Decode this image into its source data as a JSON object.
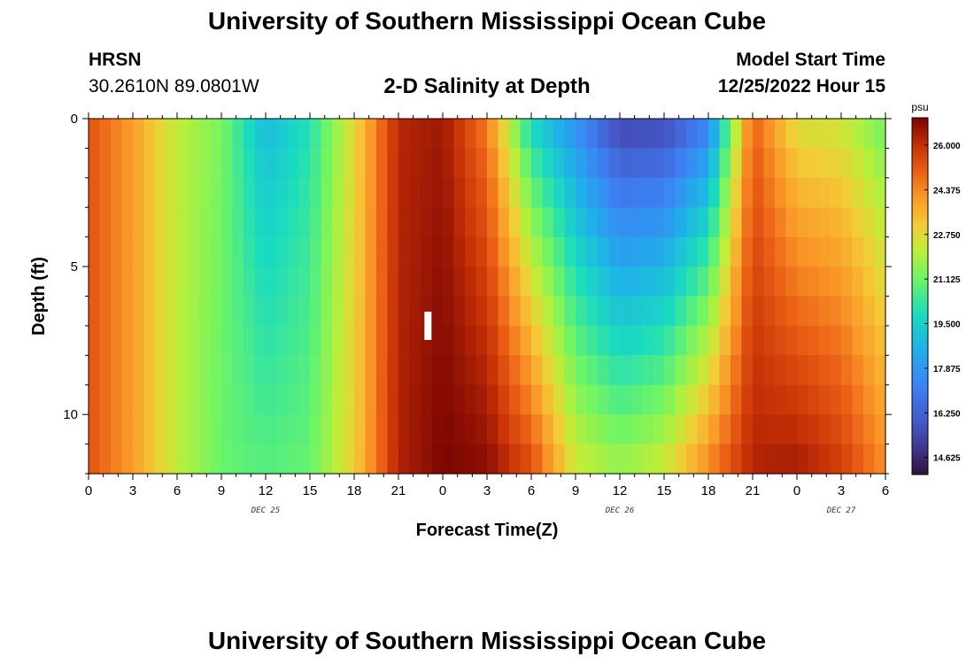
{
  "header": {
    "title": "University of Southern Mississippi Ocean Cube",
    "station": "HRSN",
    "coords": "30.2610N  89.0801W",
    "subtitle": "2-D Salinity at Depth",
    "model_start_label": "Model Start Time",
    "model_start_value": "12/25/2022 Hour 15"
  },
  "footer": {
    "title": "University of Southern Mississippi Ocean Cube"
  },
  "chart_data": {
    "type": "heatmap",
    "variable": "Salinity",
    "units": "psu",
    "xlabel": "Forecast Time(Z)",
    "ylabel": "Depth (ft)",
    "x_range_hours": [
      0,
      54
    ],
    "y_range": [
      0,
      12
    ],
    "x_ticks": [
      {
        "hour": 0,
        "label": "0"
      },
      {
        "hour": 3,
        "label": "3"
      },
      {
        "hour": 6,
        "label": "6"
      },
      {
        "hour": 9,
        "label": "9"
      },
      {
        "hour": 12,
        "label": "12"
      },
      {
        "hour": 15,
        "label": "15"
      },
      {
        "hour": 18,
        "label": "18"
      },
      {
        "hour": 21,
        "label": "21"
      },
      {
        "hour": 24,
        "label": "0"
      },
      {
        "hour": 27,
        "label": "3"
      },
      {
        "hour": 30,
        "label": "6"
      },
      {
        "hour": 33,
        "label": "9"
      },
      {
        "hour": 36,
        "label": "12"
      },
      {
        "hour": 39,
        "label": "15"
      },
      {
        "hour": 42,
        "label": "18"
      },
      {
        "hour": 45,
        "label": "21"
      },
      {
        "hour": 48,
        "label": "0"
      },
      {
        "hour": 51,
        "label": "3"
      },
      {
        "hour": 54,
        "label": "6"
      }
    ],
    "date_labels": [
      {
        "hour": 12,
        "label": "DEC 25"
      },
      {
        "hour": 36,
        "label": "DEC 26"
      },
      {
        "hour": 51,
        "label": "DEC 27"
      }
    ],
    "y_ticks": [
      {
        "value": 0,
        "label": "0"
      },
      {
        "value": 5,
        "label": "5"
      },
      {
        "value": 10,
        "label": "10"
      }
    ],
    "colorbar": {
      "min": 14.0,
      "max": 27.0,
      "ticks": [
        14.625,
        16.25,
        17.875,
        19.5,
        21.125,
        22.75,
        24.375,
        26.0
      ],
      "tick_labels": [
        "14.625",
        "16.250",
        "17.875",
        "19.500",
        "21.125",
        "22.750",
        "24.375",
        "26.000"
      ]
    },
    "current_time_marker_hour": 23.0,
    "depths": [
      0,
      1,
      2,
      3,
      4,
      5,
      6,
      7,
      8,
      9,
      10,
      11,
      12
    ],
    "profile": {
      "hours": [
        0,
        3,
        6,
        9,
        12,
        15,
        18,
        21,
        24,
        27,
        30,
        33,
        36,
        39,
        42,
        45,
        48,
        51,
        54
      ],
      "surface": [
        25.3,
        24.0,
        22.2,
        21.3,
        18.8,
        20.0,
        22.8,
        26.2,
        26.5,
        24.5,
        19.5,
        17.5,
        15.2,
        15.3,
        17.0,
        25.0,
        22.5,
        22.3,
        21.0
      ],
      "bottom": [
        25.3,
        24.0,
        22.2,
        21.0,
        20.8,
        21.0,
        23.0,
        26.3,
        27.0,
        26.8,
        25.5,
        22.5,
        21.8,
        22.5,
        24.5,
        26.3,
        26.5,
        25.8,
        24.3
      ]
    }
  }
}
